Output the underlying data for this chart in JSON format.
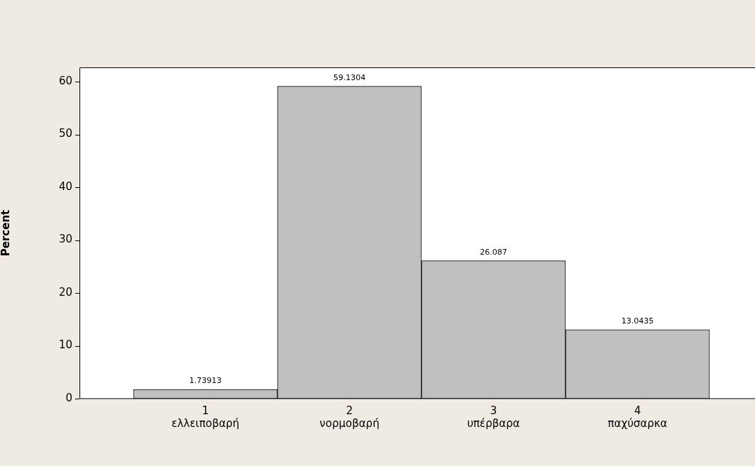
{
  "chart_data": {
    "type": "bar",
    "ylabel": "Percent",
    "categories": [
      "1\nελλειποβαρή",
      "2\nνορμοβαρή",
      "3\nυπέρβαρα",
      "4\nπαχύσαρκα"
    ],
    "values": [
      1.73913,
      59.1304,
      26.087,
      13.0435
    ],
    "color": "#c0c0c0",
    "data_labels": true,
    "grid": false,
    "legend": false,
    "ylim": [
      0,
      62.7
    ],
    "yticks": [
      0,
      10,
      20,
      30,
      40,
      50,
      60
    ]
  }
}
